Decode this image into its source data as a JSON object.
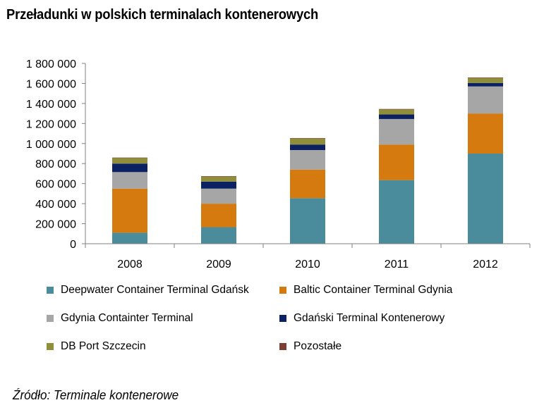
{
  "chart_data": {
    "type": "bar",
    "stacked": true,
    "title": "Przeładunki w polskich terminalach kontenerowych",
    "xlabel": "",
    "ylabel": "",
    "categories": [
      "2008",
      "2009",
      "2010",
      "2011",
      "2012"
    ],
    "ylim": [
      0,
      1800000
    ],
    "yticks": [
      0,
      200000,
      400000,
      600000,
      800000,
      1000000,
      1200000,
      1400000,
      1600000,
      1800000
    ],
    "ytick_labels": [
      "0",
      "200 000",
      "400 000",
      "600 000",
      "800 000",
      "1 000 000",
      "1 200 000",
      "1 400 000",
      "1 600 000",
      "1 800 000"
    ],
    "grid": false,
    "legend_position": "bottom",
    "series": [
      {
        "name": "Deepwater Container Terminal Gdańsk",
        "color": "#4a8c9c",
        "values": [
          110000,
          165000,
          455000,
          635000,
          900000
        ]
      },
      {
        "name": "Baltic Container Terminal Gdynia",
        "color": "#d47a0e",
        "values": [
          440000,
          235000,
          285000,
          355000,
          400000
        ]
      },
      {
        "name": "Gdynia Containter Terminal",
        "color": "#a6a6a6",
        "values": [
          165000,
          150000,
          195000,
          255000,
          270000
        ]
      },
      {
        "name": "Gdański Terminal Kontenerowy",
        "color": "#0b2162",
        "values": [
          85000,
          70000,
          55000,
          45000,
          35000
        ]
      },
      {
        "name": "DB Port Szczecin",
        "color": "#8f8f3a",
        "values": [
          55000,
          50000,
          60000,
          50000,
          50000
        ]
      },
      {
        "name": "Pozostałe",
        "color": "#7b3f34",
        "values": [
          5000,
          5000,
          5000,
          5000,
          5000
        ]
      }
    ]
  },
  "source_note": "Źródło: Terminale kontenerowe"
}
